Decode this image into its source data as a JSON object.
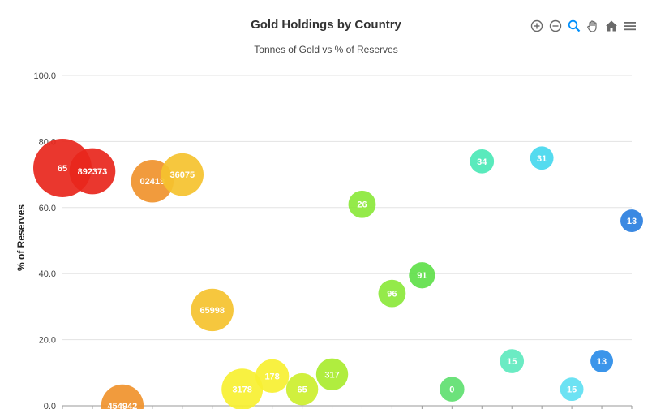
{
  "toolbar": {
    "icons": [
      "zoom-in-icon",
      "zoom-out-icon",
      "zoom-select-icon",
      "pan-icon",
      "home-icon",
      "menu-icon"
    ]
  },
  "chart_data": {
    "type": "bubble",
    "title": "Gold Holdings by Country",
    "subtitle": "Tonnes of Gold vs % of Reserves",
    "ylabel": "% of Reserves",
    "xlabel": "",
    "ylim": [
      0,
      100
    ],
    "yticks": [
      "0.0",
      "20.0",
      "40.0",
      "60.0",
      "80.0",
      "100.0"
    ],
    "x_categories": 20,
    "grid": true,
    "points": [
      {
        "x": 0,
        "y": 72,
        "size": 100,
        "label": "65",
        "color": "#e8261c"
      },
      {
        "x": 1,
        "y": 71,
        "size": 62,
        "label": "892373",
        "color": "#e8261c"
      },
      {
        "x": 3,
        "y": 68,
        "size": 53,
        "label": "02413",
        "color": "#f0922d"
      },
      {
        "x": 4,
        "y": 70,
        "size": 53,
        "label": "36075",
        "color": "#f5c22e"
      },
      {
        "x": 5,
        "y": 29,
        "size": 53,
        "label": "65998",
        "color": "#f5c22e"
      },
      {
        "x": 2,
        "y": 0,
        "size": 53,
        "label": "454942",
        "color": "#f0922d"
      },
      {
        "x": 6,
        "y": 5,
        "size": 50,
        "label": "3178",
        "color": "#f7f031"
      },
      {
        "x": 7,
        "y": 9,
        "size": 33,
        "label": "178",
        "color": "#f7f031"
      },
      {
        "x": 8,
        "y": 5,
        "size": 30,
        "label": "65",
        "color": "#ccef2e"
      },
      {
        "x": 9,
        "y": 9.5,
        "size": 30,
        "label": "317",
        "color": "#a9ec2f"
      },
      {
        "x": 10,
        "y": 61,
        "size": 22,
        "label": "26",
        "color": "#8be83b"
      },
      {
        "x": 11,
        "y": 34,
        "size": 22,
        "label": "96",
        "color": "#8be83b"
      },
      {
        "x": 12,
        "y": 39.5,
        "size": 20,
        "label": "91",
        "color": "#5fe04a"
      },
      {
        "x": 13,
        "y": 5,
        "size": 18,
        "label": "0",
        "color": "#60e070"
      },
      {
        "x": 14,
        "y": 74,
        "size": 17,
        "label": "34",
        "color": "#4be8b6"
      },
      {
        "x": 15,
        "y": 13.5,
        "size": 17,
        "label": "15",
        "color": "#5ee9be"
      },
      {
        "x": 16,
        "y": 75,
        "size": 16,
        "label": "31",
        "color": "#47d8ee"
      },
      {
        "x": 17,
        "y": 5,
        "size": 16,
        "label": "15",
        "color": "#5fdff2"
      },
      {
        "x": 18,
        "y": 13.5,
        "size": 15,
        "label": "13",
        "color": "#2a8ce8"
      },
      {
        "x": 19,
        "y": 56,
        "size": 15,
        "label": "13",
        "color": "#2a7fe0"
      }
    ]
  },
  "colors": {
    "grid": "#e3e3e3",
    "axis": "#999999",
    "title": "#333333",
    "icon": "#6a6a6a",
    "icon_active": "#008ffb"
  }
}
